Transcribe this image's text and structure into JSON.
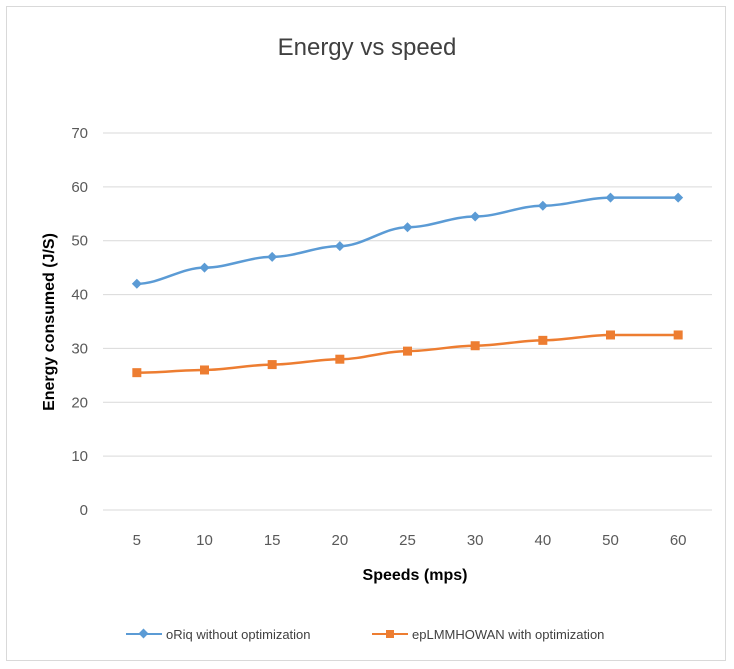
{
  "chart_data": {
    "type": "line",
    "title": "Energy vs speed",
    "xlabel": "Speeds (mps)",
    "ylabel": "Energy consumed (J/S)",
    "categories": [
      "5",
      "10",
      "15",
      "20",
      "25",
      "30",
      "40",
      "50",
      "60"
    ],
    "ylim": [
      0,
      70
    ],
    "yticks": [
      0,
      10,
      20,
      30,
      40,
      50,
      60,
      70
    ],
    "grid": true,
    "legend_position": "bottom",
    "series": [
      {
        "name": "oRiq without optimization",
        "color": "#5b9bd5",
        "marker": "diamond",
        "values": [
          42,
          45,
          47,
          49,
          52.5,
          54.5,
          56.5,
          58,
          58
        ]
      },
      {
        "name": "epLMMHOWAN with optimization",
        "color": "#ed7d31",
        "marker": "square",
        "values": [
          25.5,
          26,
          27,
          28,
          29.5,
          30.5,
          31.5,
          32.5,
          32.5
        ]
      }
    ]
  }
}
